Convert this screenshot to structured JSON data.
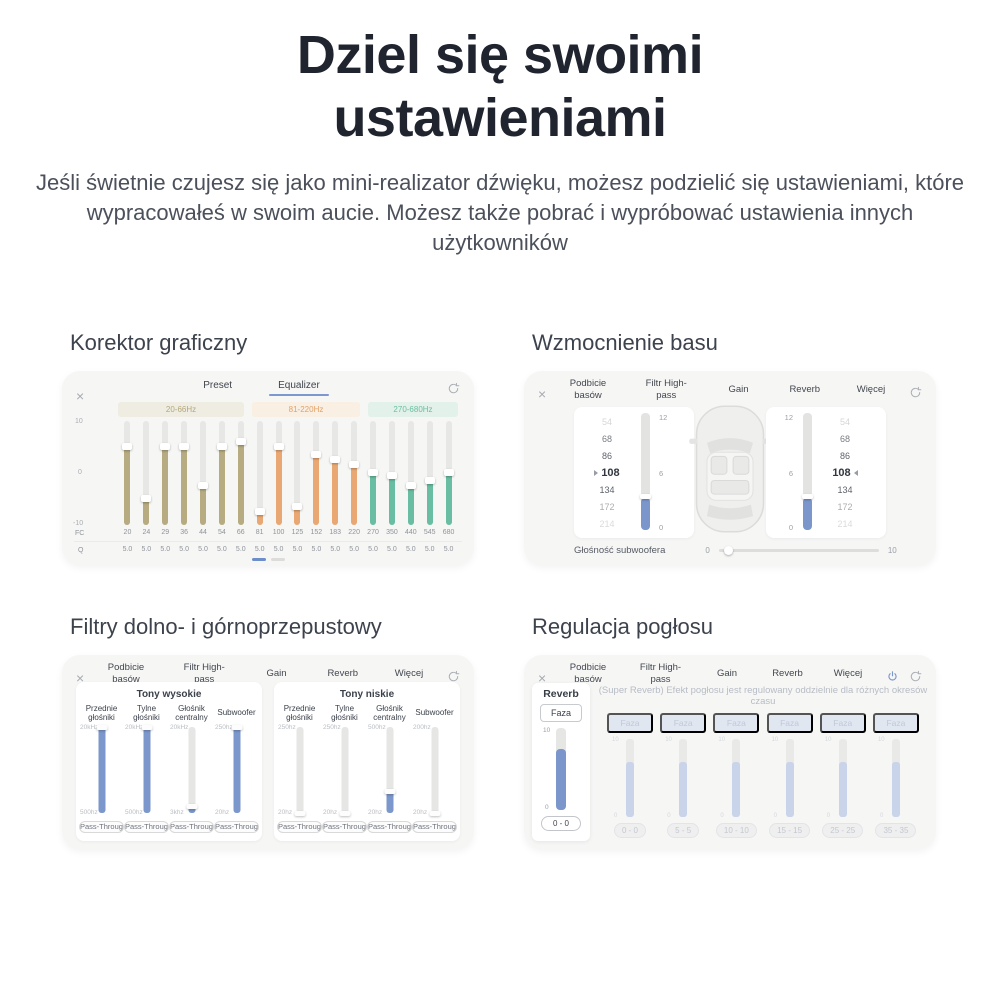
{
  "hero": {
    "title": "Dziel się swoimi ustawieniami",
    "subtitle": "Jeśli świetnie czujesz się jako mini-realizator dźwięku, możesz podzielić się ustawieniami, które wypracowałeś w swoim aucie. Możesz także pobrać i wypróbować ustawienia innych użytkowników"
  },
  "icons": {
    "close": "×"
  },
  "colors": {
    "accent_blue": "#7b96cb",
    "underline_blue": "#7b98cf"
  },
  "mixer_tabs": [
    "Podbicie basów",
    "Filtr High-pass",
    "Gain",
    "Reverb",
    "Więcej"
  ],
  "panels": {
    "equalizer": {
      "heading": "Korektor graficzny",
      "tabs": [
        "Preset",
        "Equalizer"
      ],
      "active_tab": "Equalizer",
      "axis": {
        "top": "10",
        "mid": "0",
        "bottom": "-10",
        "fc_label": "FC",
        "q_label": "Q"
      },
      "bands": [
        {
          "label": "20-66Hz",
          "bg": "#efede2",
          "text_color": "#b3a77a",
          "slider_color": "#b6ab81",
          "count": 7
        },
        {
          "label": "81-220Hz",
          "bg": "#f9efe2",
          "text_color": "#e2a268",
          "slider_color": "#e9a873",
          "count": 6
        },
        {
          "label": "270-680Hz",
          "bg": "#e2f1ea",
          "text_color": "#6cbda2",
          "slider_color": "#69bda2",
          "count": 5
        }
      ],
      "chart_data": {
        "type": "sliders",
        "fc": [
          "20",
          "24",
          "29",
          "36",
          "44",
          "54",
          "66",
          "81",
          "100",
          "125",
          "152",
          "183",
          "220",
          "270",
          "350",
          "440",
          "545",
          "680"
        ],
        "gain": [
          5,
          -5,
          5,
          5,
          -2.5,
          5,
          6,
          -7.5,
          5,
          -6.5,
          3.5,
          2.5,
          1.5,
          0,
          -0.5,
          -2.5,
          -1.5,
          0
        ],
        "q": [
          "5.0",
          "5.0",
          "5.0",
          "5.0",
          "5.0",
          "5.0",
          "5.0",
          "5.0",
          "5.0",
          "5.0",
          "5.0",
          "5.0",
          "5.0",
          "5.0",
          "5.0",
          "5.0",
          "5.0",
          "5.0"
        ],
        "ylim": [
          -10,
          10
        ]
      }
    },
    "bass": {
      "heading": "Wzmocnienie basu",
      "active_tab": "Podbicie basów",
      "wheel_values": [
        "54",
        "68",
        "86",
        "108",
        "134",
        "172",
        "214"
      ],
      "selected_wheel_index": 3,
      "level_scale": {
        "top": "12",
        "mid": "6",
        "bottom": "0"
      },
      "level_fill_pct": 27,
      "subwoofer": {
        "label": "Głośność subwoofera",
        "min": "0",
        "max": "10",
        "value_pct": 3
      }
    },
    "filters": {
      "heading": "Filtry dolno- i górnoprzepustowy",
      "active_tab": "Filtr High-pass",
      "pass_button": "Pass-Through",
      "cards": [
        {
          "title": "Tony wysokie",
          "columns": [
            {
              "name": "Przednie głośniki",
              "top": "20kHz",
              "bottom": "500hz",
              "fill_pct": 100
            },
            {
              "name": "Tylne głośniki",
              "top": "20kHz",
              "bottom": "500hz",
              "fill_pct": 100
            },
            {
              "name": "Głośnik centralny",
              "top": "20kHz",
              "bottom": "3khz",
              "fill_pct": 8
            },
            {
              "name": "Subwoofer",
              "top": "250hz",
              "bottom": "20hz",
              "fill_pct": 100
            }
          ]
        },
        {
          "title": "Tony niskie",
          "columns": [
            {
              "name": "Przednie głośniki",
              "top": "250hz",
              "bottom": "20hz",
              "fill_pct": 0
            },
            {
              "name": "Tylne głośniki",
              "top": "250hz",
              "bottom": "20hz",
              "fill_pct": 0
            },
            {
              "name": "Głośnik centralny",
              "top": "500hz",
              "bottom": "20hz",
              "fill_pct": 26
            },
            {
              "name": "Subwoofer",
              "top": "200hz",
              "bottom": "20hz",
              "fill_pct": 0
            }
          ]
        }
      ]
    },
    "reverb": {
      "heading": "Regulacja pogłosu",
      "active_tab": "Reverb",
      "sidebar": {
        "title": "Reverb",
        "phase_button": "Faza",
        "scale_top": "10",
        "scale_bottom": "0",
        "fill_pct": 74,
        "range_button": "0 - 0"
      },
      "disabled_note": "(Super Reverb) Efekt pogłosu jest regulowany oddzielnie dla różnych okresów czasu",
      "phase_label": "Faza",
      "channel_scale": {
        "top": "10",
        "bottom": "0"
      },
      "channels": [
        {
          "range": "0 - 0",
          "fill_pct": 70
        },
        {
          "range": "5 - 5",
          "fill_pct": 70
        },
        {
          "range": "10 - 10",
          "fill_pct": 70
        },
        {
          "range": "15 - 15",
          "fill_pct": 70
        },
        {
          "range": "25 - 25",
          "fill_pct": 70
        },
        {
          "range": "35 - 35",
          "fill_pct": 70
        }
      ]
    }
  }
}
